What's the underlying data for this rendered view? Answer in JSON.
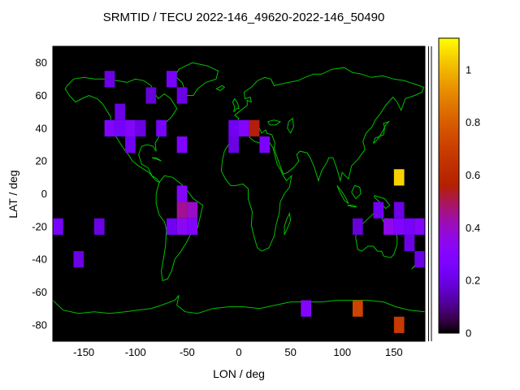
{
  "title": "SRMTID / TECU 2022-146_49620-2022-146_50490",
  "chart_data": {
    "type": "heatmap",
    "title": "SRMTID / TECU 2022-146_49620-2022-146_50490",
    "xlabel": "LON / deg",
    "ylabel": "LAT / deg",
    "xlim": [
      -180,
      180
    ],
    "ylim": [
      -90,
      90
    ],
    "x_ticks": [
      -150,
      -100,
      -50,
      0,
      50,
      100,
      150
    ],
    "y_ticks": [
      -80,
      -60,
      -40,
      -20,
      0,
      20,
      40,
      60,
      80
    ],
    "grid_cell_deg": 10,
    "background_color": "#000000",
    "coastline_color": "#00c000",
    "colorbar": {
      "ticks": [
        0,
        0.2,
        0.4,
        0.6,
        0.8,
        1
      ],
      "vmin": 0,
      "vmax": 1.12,
      "palette": "gnuplot black-purple-magenta-orange-yellow"
    },
    "cells": [
      {
        "lon": -130,
        "lat": 65,
        "value": 0.2
      },
      {
        "lon": -70,
        "lat": 65,
        "value": 0.25
      },
      {
        "lon": -90,
        "lat": 55,
        "value": 0.18
      },
      {
        "lon": -60,
        "lat": 55,
        "value": 0.2
      },
      {
        "lon": -120,
        "lat": 45,
        "value": 0.2
      },
      {
        "lon": -130,
        "lat": 35,
        "value": 0.28
      },
      {
        "lon": -120,
        "lat": 35,
        "value": 0.24
      },
      {
        "lon": -110,
        "lat": 35,
        "value": 0.3
      },
      {
        "lon": -100,
        "lat": 35,
        "value": 0.2
      },
      {
        "lon": -110,
        "lat": 25,
        "value": 0.22
      },
      {
        "lon": -80,
        "lat": 35,
        "value": 0.25
      },
      {
        "lon": -60,
        "lat": 25,
        "value": 0.28
      },
      {
        "lon": -10,
        "lat": 35,
        "value": 0.22
      },
      {
        "lon": 0,
        "lat": 35,
        "value": 0.3
      },
      {
        "lon": 10,
        "lat": 35,
        "value": 0.55
      },
      {
        "lon": 20,
        "lat": 25,
        "value": 0.26
      },
      {
        "lon": -10,
        "lat": 25,
        "value": 0.2
      },
      {
        "lon": -60,
        "lat": -5,
        "value": 0.3
      },
      {
        "lon": -60,
        "lat": -15,
        "value": 0.45
      },
      {
        "lon": -50,
        "lat": -15,
        "value": 0.4
      },
      {
        "lon": -60,
        "lat": -25,
        "value": 0.33
      },
      {
        "lon": -50,
        "lat": -25,
        "value": 0.28
      },
      {
        "lon": -70,
        "lat": -25,
        "value": 0.22
      },
      {
        "lon": -180,
        "lat": -25,
        "value": 0.25
      },
      {
        "lon": -140,
        "lat": -25,
        "value": 0.2
      },
      {
        "lon": -160,
        "lat": -45,
        "value": 0.2
      },
      {
        "lon": 110,
        "lat": -25,
        "value": 0.18
      },
      {
        "lon": 130,
        "lat": -15,
        "value": 0.22
      },
      {
        "lon": 140,
        "lat": -25,
        "value": 0.35
      },
      {
        "lon": 150,
        "lat": -25,
        "value": 0.28
      },
      {
        "lon": 150,
        "lat": -15,
        "value": 0.2
      },
      {
        "lon": 160,
        "lat": -25,
        "value": 0.25
      },
      {
        "lon": 170,
        "lat": -25,
        "value": 0.3
      },
      {
        "lon": 160,
        "lat": -35,
        "value": 0.2
      },
      {
        "lon": 170,
        "lat": -45,
        "value": 0.2
      },
      {
        "lon": 150,
        "lat": 5,
        "value": 1.05
      },
      {
        "lon": 60,
        "lat": -75,
        "value": 0.3
      },
      {
        "lon": 110,
        "lat": -75,
        "value": 0.72
      },
      {
        "lon": 150,
        "lat": -85,
        "value": 0.68
      }
    ]
  }
}
